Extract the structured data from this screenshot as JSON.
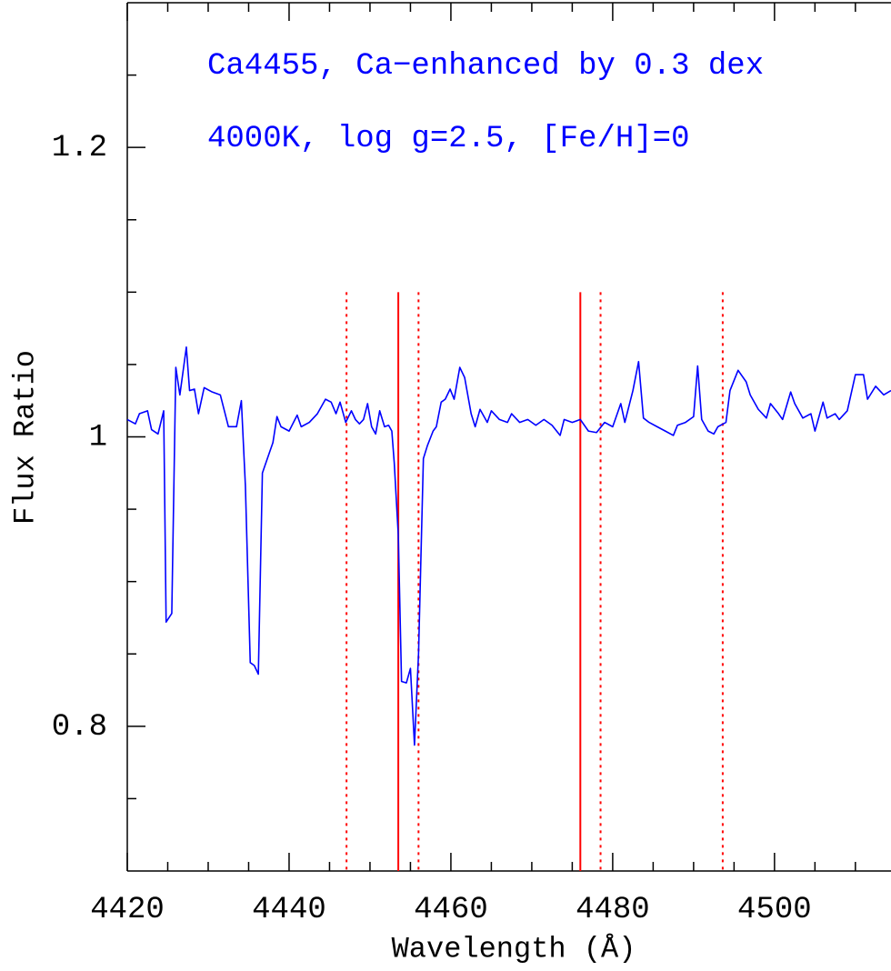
{
  "chart_data": {
    "type": "line",
    "annotations": [
      "Ca4455, Ca−enhanced by 0.3 dex",
      "4000K, log g=2.5, [Fe/H]=0"
    ],
    "xlabel": "Wavelength (Å)",
    "ylabel": "Flux Ratio",
    "xlim": [
      4420,
      4514.4
    ],
    "ylim": [
      0.7,
      1.3
    ],
    "xticks": [
      4420,
      4440,
      4460,
      4480,
      4500
    ],
    "xticks_minor": [
      4425,
      4430,
      4435,
      4445,
      4450,
      4455,
      4465,
      4470,
      4475,
      4485,
      4490,
      4495,
      4505,
      4510
    ],
    "yticks": [
      0.8,
      1,
      1.2
    ],
    "yticks_minor": [
      0.75,
      0.85,
      0.9,
      0.95,
      1.05,
      1.1,
      1.15,
      1.25
    ],
    "x": [
      4420,
      4421,
      4421.5,
      4422.5,
      4423,
      4423.8,
      4424.5,
      4424.8,
      4425.5,
      4426,
      4426.5,
      4427.3,
      4427.7,
      4428.3,
      4428.8,
      4429.5,
      4430.5,
      4431.5,
      4432.5,
      4433.5,
      4434.1,
      4434.6,
      4435.2,
      4435.7,
      4436.2,
      4436.7,
      4437.5,
      4438,
      4438.5,
      4439,
      4440,
      4441,
      4441.5,
      4442.5,
      4443.5,
      4444.5,
      4445.2,
      4445.8,
      4446.3,
      4447,
      4447.7,
      4448.2,
      4448.7,
      4449.2,
      4449.7,
      4450.2,
      4450.7,
      4451.2,
      4451.8,
      4452.3,
      4452.7,
      4453,
      4453.5,
      4453.9,
      4454.5,
      4455,
      4455.5,
      4456,
      4456.6,
      4457.1,
      4457.8,
      4458.2,
      4458.8,
      4459.3,
      4459.9,
      4460.4,
      4461.1,
      4461.7,
      4462.5,
      4463,
      4463.6,
      4464.5,
      4465,
      4466,
      4467,
      4467.5,
      4468.5,
      4469.5,
      4470.5,
      4471.5,
      4472.5,
      4473.5,
      4474,
      4475,
      4476,
      4477,
      4478,
      4479,
      4480,
      4481,
      4481.5,
      4482.5,
      4483.2,
      4483.8,
      4484.5,
      4485.5,
      4486.5,
      4487.5,
      4488,
      4489,
      4490,
      4490.5,
      4491,
      4491.8,
      4492.5,
      4493,
      4494,
      4494.5,
      4495.5,
      4496.5,
      4497,
      4498,
      4499,
      4499.5,
      4500.5,
      4501,
      4502,
      4502.5,
      4503.5,
      4504.5,
      4505,
      4506,
      4506.5,
      4507.5,
      4508,
      4509,
      4510,
      4511,
      4511.5,
      4512.5,
      4513.5,
      4514.4
    ],
    "series": [
      {
        "color": "#0000ff",
        "values": [
          1.012,
          1.009,
          1.016,
          1.018,
          1.005,
          1.002,
          1.018,
          0.872,
          0.878,
          1.048,
          1.029,
          1.062,
          1.032,
          1.033,
          1.016,
          1.034,
          1.031,
          1.029,
          1.007,
          1.007,
          1.025,
          0.966,
          0.844,
          0.842,
          0.836,
          0.975,
          0.988,
          0.996,
          1.014,
          1.007,
          1.004,
          1.015,
          1.007,
          1.01,
          1.016,
          1.026,
          1.024,
          1.016,
          1.024,
          1.01,
          1.018,
          1.012,
          1.009,
          1.012,
          1.023,
          1.007,
          1.002,
          1.018,
          1.007,
          1.008,
          1.004,
          0.982,
          0.932,
          0.831,
          0.83,
          0.84,
          0.787,
          0.85,
          0.985,
          0.994,
          1.004,
          1.007,
          1.024,
          1.026,
          1.033,
          1.026,
          1.048,
          1.041,
          1.016,
          1.007,
          1.019,
          1.01,
          1.018,
          1.012,
          1.01,
          1.016,
          1.01,
          1.012,
          1.008,
          1.012,
          1.008,
          1.001,
          1.012,
          1.01,
          1.012,
          1.004,
          1.003,
          1.01,
          1.007,
          1.023,
          1.01,
          1.032,
          1.052,
          1.013,
          1.01,
          1.007,
          1.004,
          1.001,
          1.008,
          1.01,
          1.014,
          1.049,
          1.012,
          1.004,
          1.002,
          1.007,
          1.01,
          1.032,
          1.046,
          1.038,
          1.029,
          1.019,
          1.013,
          1.023,
          1.016,
          1.012,
          1.031,
          1.023,
          1.013,
          1.016,
          1.004,
          1.024,
          1.013,
          1.016,
          1.012,
          1.018,
          1.043,
          1.043,
          1.026,
          1.035,
          1.029,
          1.032
        ]
      }
    ],
    "vlines": [
      {
        "x": 4447.1,
        "style": "dotted"
      },
      {
        "x": 4453.5,
        "style": "solid"
      },
      {
        "x": 4456.0,
        "style": "dotted"
      },
      {
        "x": 4476.0,
        "style": "solid"
      },
      {
        "x": 4478.5,
        "style": "dotted"
      },
      {
        "x": 4493.6,
        "style": "dotted"
      }
    ],
    "vline_color": "#ff0000",
    "vline_top": 1.1
  }
}
